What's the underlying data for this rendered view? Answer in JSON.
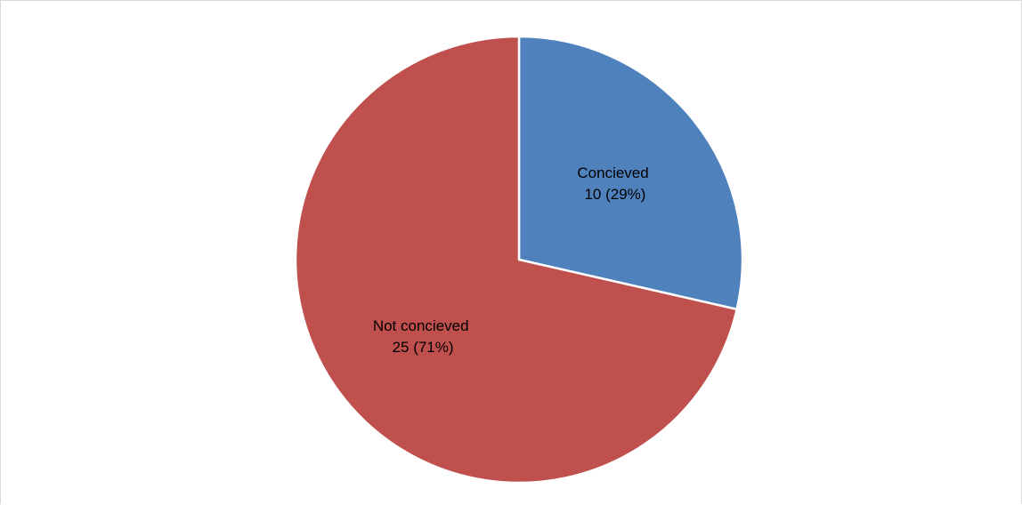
{
  "chart_data": {
    "type": "pie",
    "title": "",
    "slices": [
      {
        "name": "Concieved",
        "value": 10,
        "percent": 29,
        "value_label": "10 (29%)",
        "color": "#4F81BD"
      },
      {
        "name": "Not concieved",
        "value": 25,
        "percent": 71,
        "value_label": "25 (71%)",
        "color": "#C0504D"
      }
    ],
    "start_angle_deg": 0,
    "direction": "clockwise",
    "legend": "none",
    "data_labels": "inside"
  }
}
